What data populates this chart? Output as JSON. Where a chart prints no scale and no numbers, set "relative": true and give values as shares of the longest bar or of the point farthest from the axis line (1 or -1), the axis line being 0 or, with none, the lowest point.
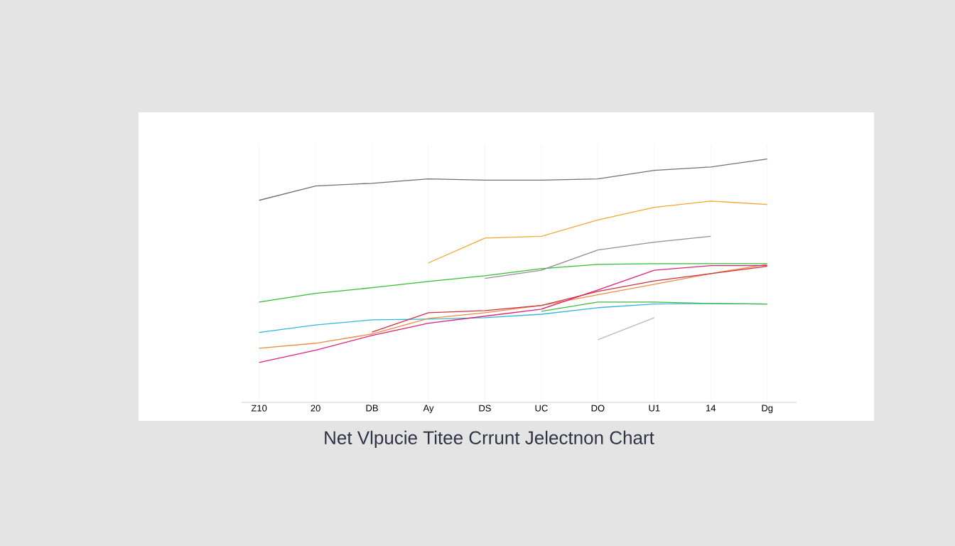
{
  "chart_data": {
    "type": "line",
    "title": "Net Vlpucie Titee Crrunt Jelectnon Chart",
    "relative": true,
    "grid": "x",
    "marker": "none",
    "line_style": "solid",
    "categories": [
      "Z10",
      "20",
      "DB",
      "Ay",
      "DS",
      "UC",
      "DO",
      "U1",
      "14",
      "Dg"
    ],
    "series": [
      {
        "color": "#7a6a80",
        "values": [
          0.83,
          0.889,
          0.9,
          0.918,
          0.913,
          0.913,
          0.918,
          0.953,
          0.967,
          1
        ]
      },
      {
        "color": "#f0a830",
        "values": [
          null,
          null,
          null,
          0.573,
          0.675,
          0.682,
          0.749,
          0.801,
          0.827,
          0.813
        ]
      },
      {
        "color": "#30c030",
        "values": [
          0.412,
          0.448,
          0.471,
          0.497,
          0.52,
          0.549,
          0.567,
          0.57,
          0.57,
          0.57
        ]
      },
      {
        "color": "#9a8aa0",
        "values": [
          null,
          null,
          null,
          null,
          0.509,
          0.543,
          0.626,
          0.658,
          0.682,
          null
        ]
      },
      {
        "color": "#30b8d8",
        "values": [
          0.287,
          0.318,
          0.339,
          0.342,
          0.348,
          0.362,
          0.389,
          0.404,
          0.406,
          0.404
        ]
      },
      {
        "color": "#f08a40",
        "values": [
          0.222,
          0.243,
          0.281,
          0.345,
          0.368,
          0.398,
          0.442,
          0.485,
          0.529,
          0.567
        ]
      },
      {
        "color": "#e0207a",
        "values": [
          0.164,
          0.214,
          0.275,
          0.325,
          0.354,
          0.383,
          0.462,
          0.543,
          0.562,
          0.562
        ]
      },
      {
        "color": "#d03040",
        "values": [
          null,
          null,
          0.289,
          0.368,
          0.377,
          0.398,
          0.456,
          0.499,
          0.529,
          0.559
        ]
      },
      {
        "color": "#bbbbbb",
        "values": [
          null,
          null,
          null,
          null,
          null,
          null,
          0.257,
          0.348,
          null,
          null
        ]
      },
      {
        "color": "#40b840",
        "values": [
          null,
          null,
          null,
          null,
          null,
          0.374,
          0.412,
          0.412,
          0.406,
          0.404
        ]
      }
    ]
  }
}
